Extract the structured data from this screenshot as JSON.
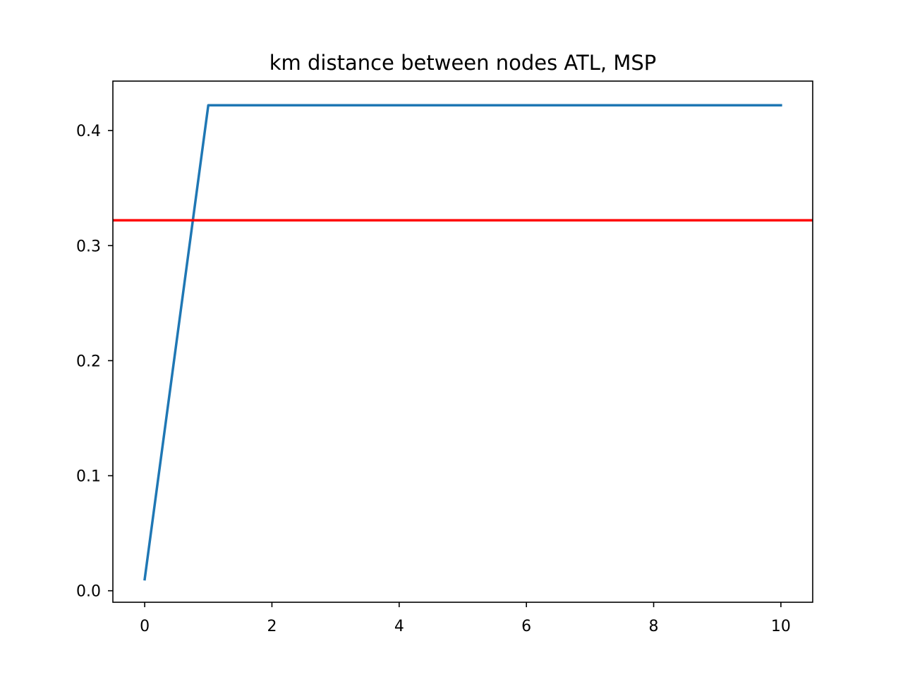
{
  "chart_data": {
    "type": "line",
    "title": "km distance between nodes ATL, MSP",
    "xlabel": "",
    "ylabel": "",
    "xlim": [
      -0.5,
      10.5
    ],
    "ylim": [
      -0.01,
      0.443
    ],
    "xticks": [
      0,
      2,
      4,
      6,
      8,
      10
    ],
    "xtick_labels": [
      "0",
      "2",
      "4",
      "6",
      "8",
      "10"
    ],
    "yticks": [
      0.0,
      0.1,
      0.2,
      0.3,
      0.4
    ],
    "ytick_labels": [
      "0.0",
      "0.1",
      "0.2",
      "0.3",
      "0.4"
    ],
    "grid": false,
    "legend": "none",
    "series": [
      {
        "color": "#1f77b4",
        "x": [
          0,
          1,
          2,
          3,
          4,
          5,
          6,
          7,
          8,
          9,
          10
        ],
        "y": [
          0.01,
          0.422,
          0.422,
          0.422,
          0.422,
          0.422,
          0.422,
          0.422,
          0.422,
          0.422,
          0.422
        ]
      }
    ],
    "hlines": [
      {
        "y": 0.322,
        "color": "#ff0000"
      }
    ]
  }
}
